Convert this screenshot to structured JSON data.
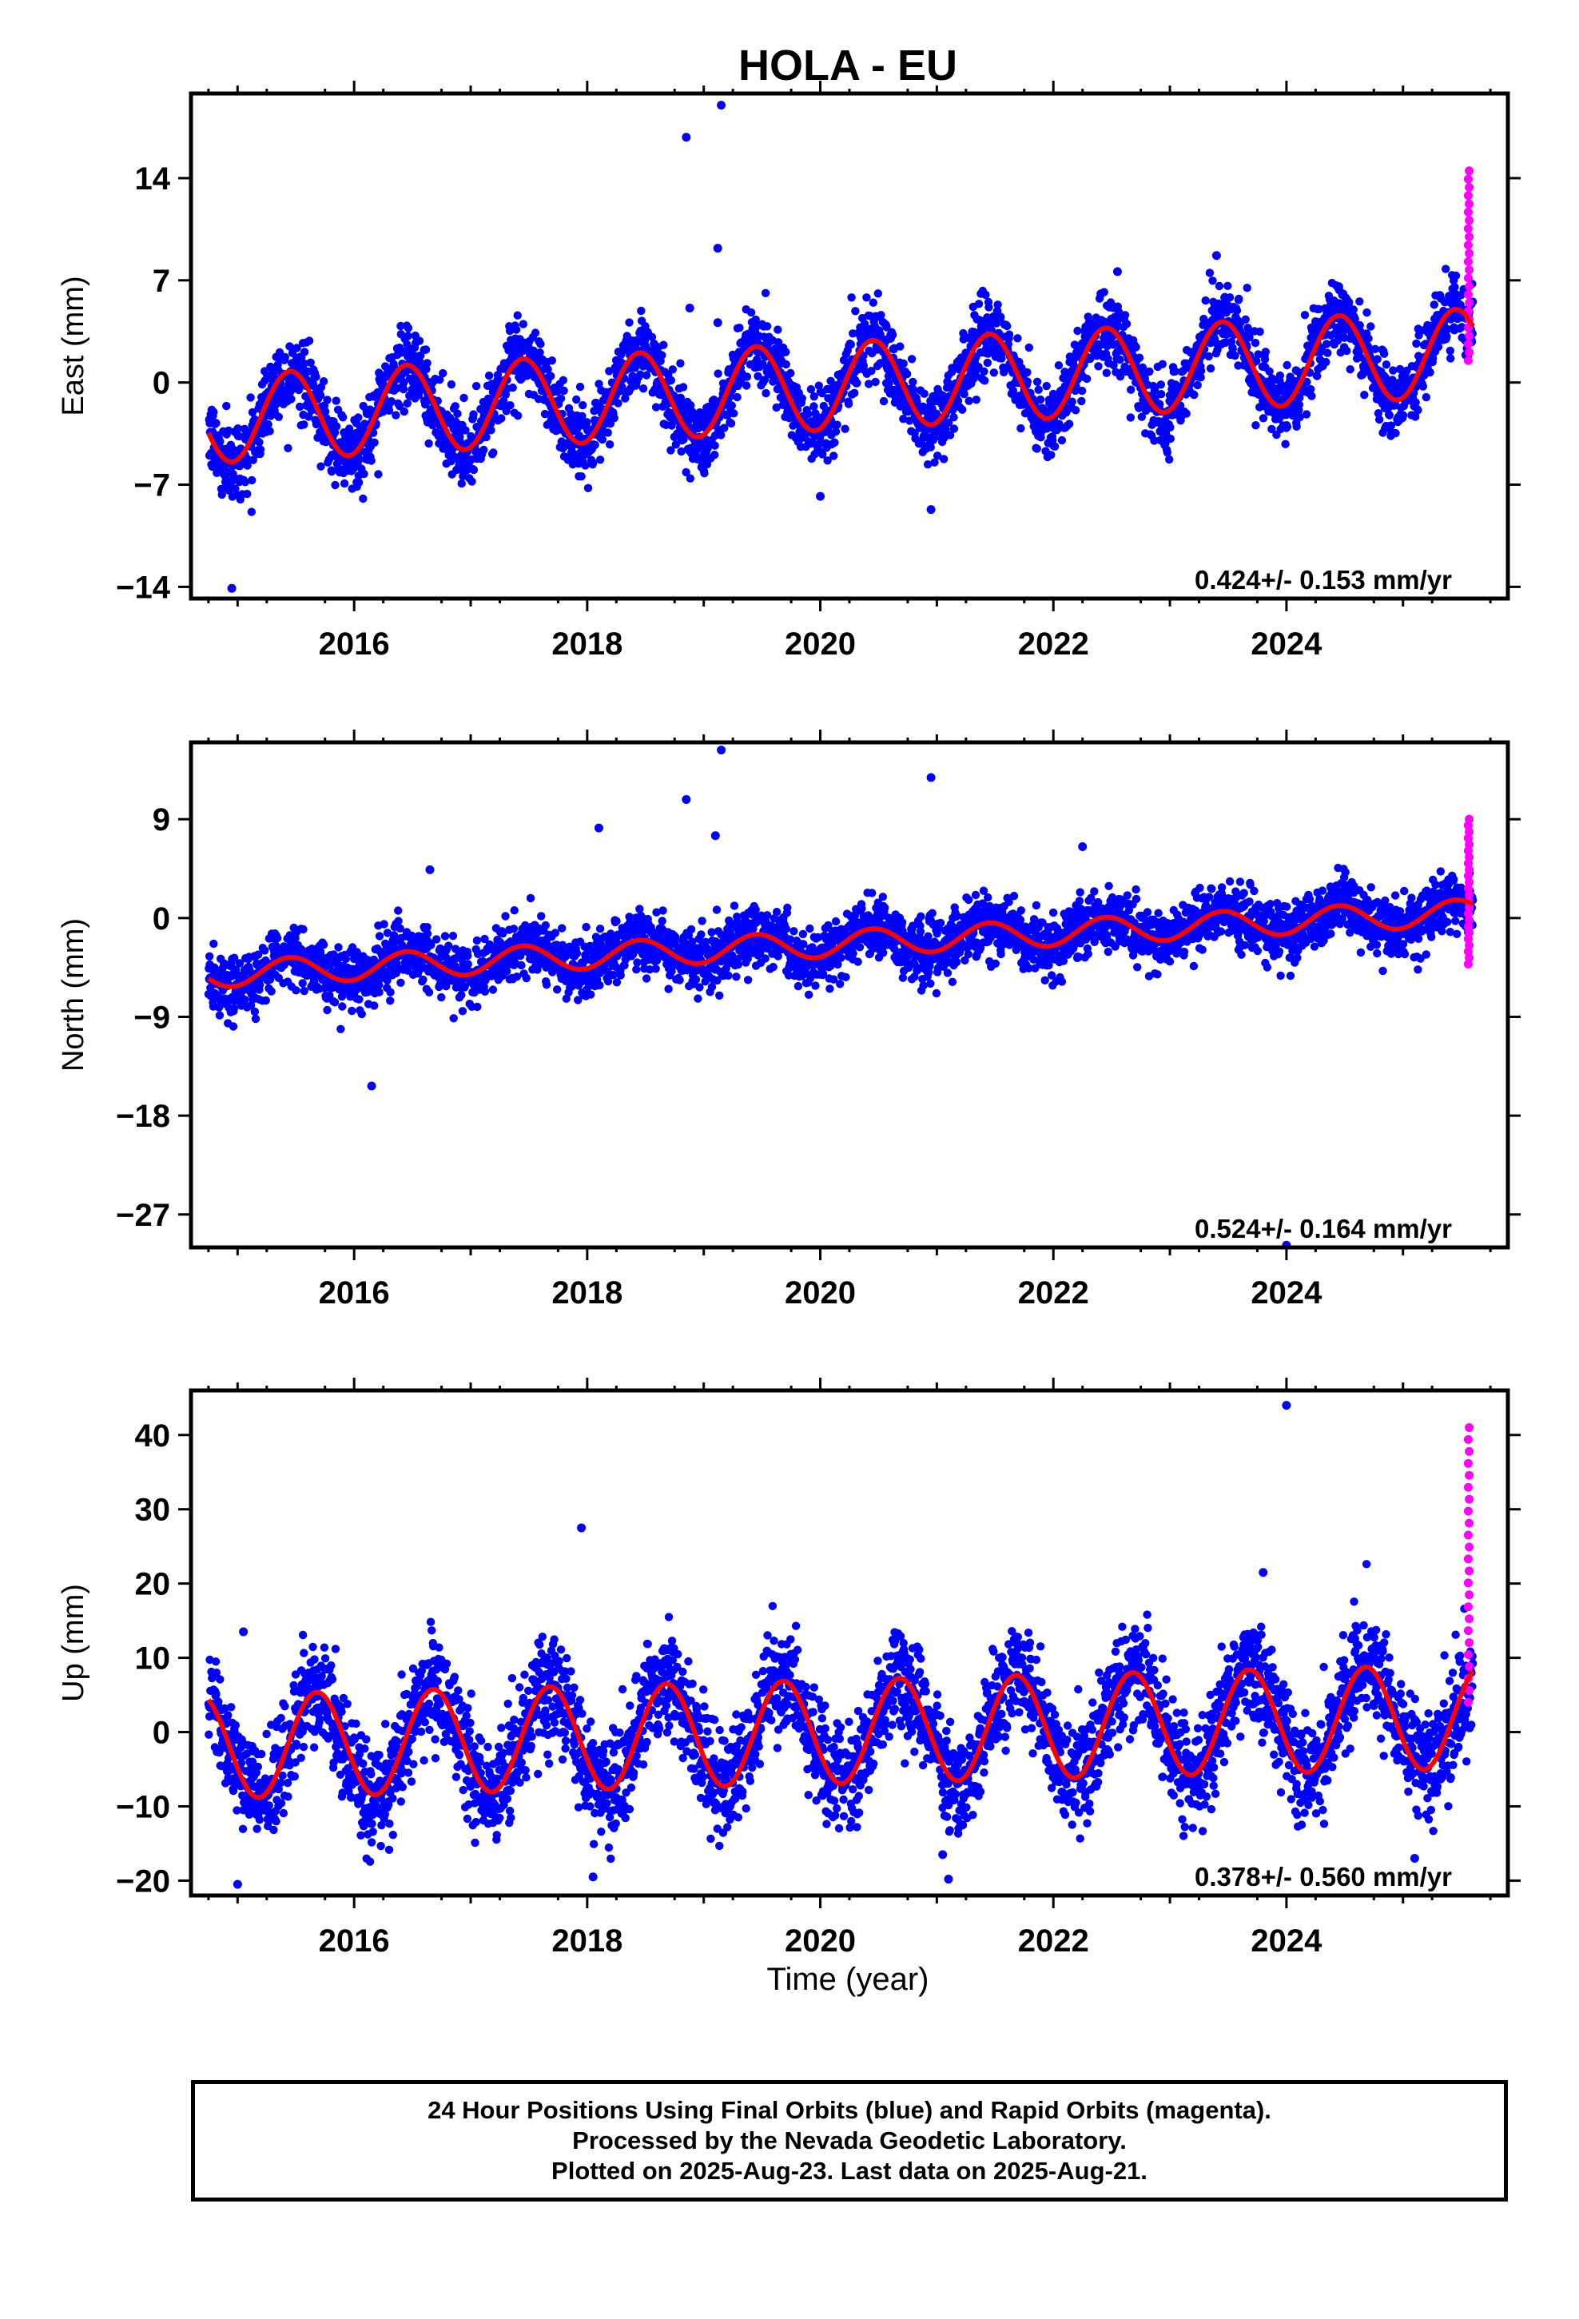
{
  "title": "HOLA - EU",
  "xlabel": "Time (year)",
  "colors": {
    "final": "#0000ff",
    "rapid": "#ff00ff",
    "model": "#ff0000",
    "frame": "#000000"
  },
  "chart_data": [
    {
      "type": "scatter",
      "component": "East",
      "ylabel": "East (mm)",
      "rate_label": "0.424+/- 0.153 mm/yr",
      "xlim": [
        2014.6,
        2025.9
      ],
      "ylim": [
        -14.8,
        19.8
      ],
      "xticks": [
        2016,
        2018,
        2020,
        2022,
        2024
      ],
      "yticks": [
        -14,
        -7,
        0,
        7,
        14
      ],
      "model": {
        "intercept": -0.3,
        "rate": 0.424,
        "amplitude": 3.0,
        "peak_phase": 0.45,
        "start": 2014.75,
        "end": 2025.6
      },
      "rapid_range": [
        1.5,
        14.5
      ],
      "outliers": [
        [
          2014.95,
          -14.1
        ],
        [
          2018.85,
          16.8
        ],
        [
          2019.15,
          19.0
        ],
        [
          2019.12,
          9.2
        ],
        [
          2018.88,
          5.1
        ],
        [
          2019.12,
          4.1
        ],
        [
          2020.0,
          -7.8
        ],
        [
          2020.95,
          -8.7
        ],
        [
          2022.55,
          7.6
        ],
        [
          2023.4,
          8.7
        ]
      ]
    },
    {
      "type": "scatter",
      "component": "North",
      "ylabel": "North (mm)",
      "rate_label": "0.524+/- 0.164 mm/yr",
      "xlim": [
        2014.6,
        2025.9
      ],
      "ylim": [
        -30.0,
        16.0
      ],
      "xticks": [
        2016,
        2018,
        2020,
        2022,
        2024
      ],
      "yticks": [
        -27,
        -18,
        -9,
        0,
        9
      ],
      "model": {
        "intercept": -2.4,
        "rate": 0.524,
        "amplitude": 1.2,
        "peak_phase": 0.45,
        "start": 2014.75,
        "end": 2025.6
      },
      "rapid_range": [
        -4.2,
        9.0
      ],
      "outliers": [
        [
          2016.15,
          -15.3
        ],
        [
          2018.1,
          8.2
        ],
        [
          2018.85,
          10.8
        ],
        [
          2019.15,
          15.3
        ],
        [
          2019.1,
          7.5
        ],
        [
          2020.95,
          12.8
        ],
        [
          2024.0,
          -29.8
        ],
        [
          2022.25,
          6.5
        ],
        [
          2016.65,
          4.4
        ]
      ]
    },
    {
      "type": "scatter",
      "component": "Up",
      "ylabel": "Up (mm)",
      "rate_label": "0.378+/- 0.560 mm/yr",
      "xlim": [
        2014.6,
        2025.9
      ],
      "ylim": [
        -22.0,
        46.0
      ],
      "xticks": [
        2016,
        2018,
        2020,
        2022,
        2024
      ],
      "yticks": [
        -20,
        -10,
        0,
        10,
        20,
        30,
        40
      ],
      "model": {
        "intercept": 0.0,
        "rate": 0.378,
        "amplitude": 7.0,
        "peak_phase": 0.68,
        "start": 2014.75,
        "end": 2025.6
      },
      "rapid_range": [
        4.0,
        41.0
      ],
      "outliers": [
        [
          2017.95,
          27.5
        ],
        [
          2024.0,
          44.0
        ],
        [
          2023.8,
          21.5
        ],
        [
          2018.05,
          -19.5
        ],
        [
          2021.1,
          -19.8
        ],
        [
          2015.0,
          -20.5
        ],
        [
          2025.1,
          -17.0
        ],
        [
          2015.05,
          13.5
        ],
        [
          2021.05,
          -16.5
        ]
      ]
    }
  ],
  "footer": {
    "line1": "24 Hour Positions Using Final Orbits (blue) and Rapid Orbits (magenta).",
    "line2": "Processed by the Nevada Geodetic Laboratory.",
    "line3": "Plotted on 2025-Aug-23. Last data on 2025-Aug-21."
  }
}
